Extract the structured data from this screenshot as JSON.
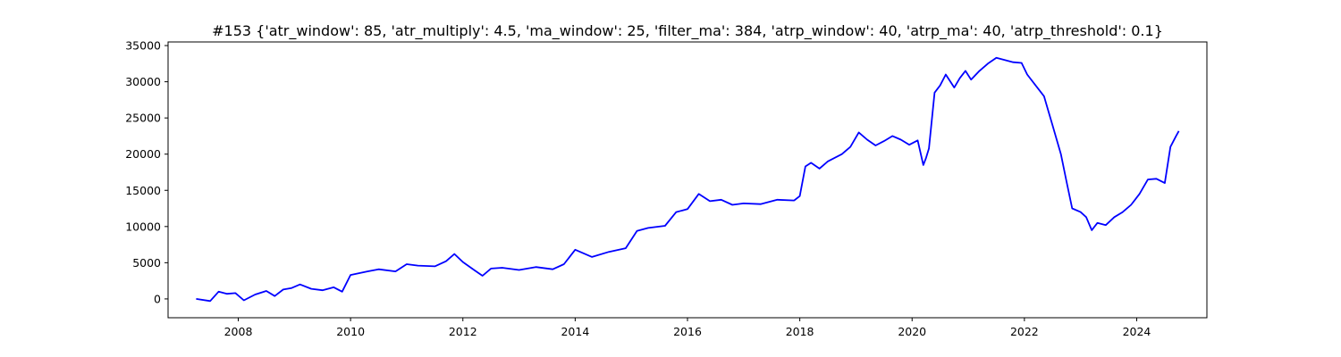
{
  "chart_data": {
    "type": "line",
    "title": "#153 {'atr_window': 85, 'atr_multiply': 4.5, 'ma_window': 25, 'filter_ma': 384, 'atrp_window': 40, 'atrp_ma': 40, 'atrp_threshold': 0.1}",
    "xlabel": "",
    "ylabel": "",
    "xlim": [
      2006.75,
      2025.25
    ],
    "ylim": [
      -2600,
      35500
    ],
    "x_ticks": [
      2008,
      2010,
      2012,
      2014,
      2016,
      2018,
      2020,
      2022,
      2024
    ],
    "x_tick_labels": [
      "2008",
      "2010",
      "2012",
      "2014",
      "2016",
      "2018",
      "2020",
      "2022",
      "2024"
    ],
    "y_ticks": [
      0,
      5000,
      10000,
      15000,
      20000,
      25000,
      30000,
      35000
    ],
    "y_tick_labels": [
      "0",
      "5000",
      "10000",
      "15000",
      "20000",
      "25000",
      "30000",
      "35000"
    ],
    "grid": false,
    "color": "#0000ff",
    "series": [
      {
        "x": [
          2007.25,
          2007.5,
          2007.65,
          2007.8,
          2007.95,
          2008.1,
          2008.3,
          2008.5,
          2008.65,
          2008.8,
          2008.95,
          2009.1,
          2009.3,
          2009.5,
          2009.7,
          2009.85,
          2010.0,
          2010.3,
          2010.5,
          2010.8,
          2011.0,
          2011.2,
          2011.5,
          2011.7,
          2011.85,
          2012.0,
          2012.2,
          2012.35,
          2012.5,
          2012.7,
          2013.0,
          2013.3,
          2013.6,
          2013.8,
          2014.0,
          2014.3,
          2014.6,
          2014.9,
          2015.1,
          2015.3,
          2015.6,
          2015.8,
          2016.0,
          2016.2,
          2016.4,
          2016.6,
          2016.8,
          2017.0,
          2017.3,
          2017.6,
          2017.9,
          2018.0,
          2018.1,
          2018.2,
          2018.35,
          2018.5,
          2018.75,
          2018.9,
          2019.05,
          2019.2,
          2019.35,
          2019.5,
          2019.65,
          2019.8,
          2019.95,
          2020.1,
          2020.2,
          2020.25,
          2020.3,
          2020.4,
          2020.5,
          2020.6,
          2020.75,
          2020.85,
          2020.95,
          2021.05,
          2021.2,
          2021.35,
          2021.5,
          2021.65,
          2021.8,
          2021.95,
          2022.05,
          2022.2,
          2022.35,
          2022.5,
          2022.65,
          2022.75,
          2022.85,
          2023.0,
          2023.1,
          2023.2,
          2023.3,
          2023.45,
          2023.6,
          2023.75,
          2023.9,
          2024.05,
          2024.2,
          2024.35,
          2024.5,
          2024.6,
          2024.7,
          2024.75
        ],
        "y": [
          0,
          -300,
          1000,
          700,
          800,
          -200,
          600,
          1100,
          400,
          1300,
          1500,
          2000,
          1400,
          1200,
          1600,
          1000,
          3300,
          3800,
          4100,
          3800,
          4800,
          4600,
          4500,
          5200,
          6200,
          5100,
          4000,
          3200,
          4200,
          4300,
          4000,
          4400,
          4100,
          4800,
          6800,
          5800,
          6500,
          7000,
          9400,
          9800,
          10100,
          12000,
          12400,
          14500,
          13500,
          13700,
          13000,
          13200,
          13100,
          13700,
          13600,
          14200,
          18300,
          18800,
          18000,
          19000,
          20000,
          21000,
          23000,
          22000,
          21200,
          21800,
          22500,
          22000,
          21300,
          21900,
          18500,
          19500,
          20800,
          28500,
          29500,
          31000,
          29200,
          30500,
          31500,
          30300,
          31500,
          32500,
          33300,
          33000,
          32700,
          32600,
          31000,
          29500,
          28000,
          24000,
          20000,
          16200,
          12500,
          12000,
          11300,
          9500,
          10500,
          10200,
          11300,
          12000,
          13000,
          14500,
          16500,
          16600,
          16000,
          21000,
          22500,
          23200
        ]
      }
    ]
  }
}
